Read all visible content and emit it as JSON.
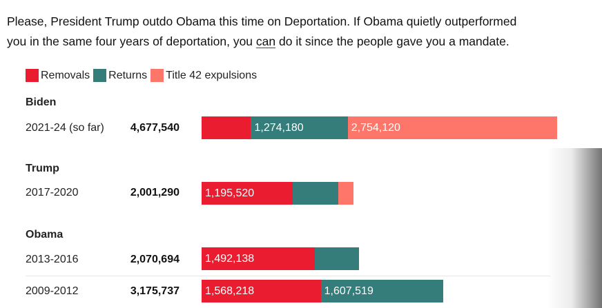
{
  "intro": {
    "line1": "Please, President Trump outdo Obama this time on Deportation.  If Obama quietly outperformed",
    "line2_before": "you in the same four years of deportation, you ",
    "line2_underlined": "can",
    "line2_after": " do it since the people gave you a mandate."
  },
  "colors": {
    "removals": "#ea1c30",
    "returns": "#357d7b",
    "title42": "#fd7669"
  },
  "chart_data": {
    "type": "bar",
    "orientation": "horizontal",
    "stacked": true,
    "legend": [
      "Removals",
      "Returns",
      "Title 42 expulsions"
    ],
    "groups": [
      {
        "name": "Biden",
        "rows": [
          {
            "period": "2021-24 (so far)",
            "total": "4,677,540",
            "total_value": 4677540,
            "segments": [
              {
                "series": "Removals",
                "value": 649240,
                "label": ""
              },
              {
                "series": "Returns",
                "value": 1274180,
                "label": "1,274,180"
              },
              {
                "series": "Title 42 expulsions",
                "value": 2754120,
                "label": "2,754,120"
              }
            ]
          }
        ]
      },
      {
        "name": "Trump",
        "rows": [
          {
            "period": "2017-2020",
            "total": "2,001,290",
            "total_value": 2001290,
            "segments": [
              {
                "series": "Removals",
                "value": 1195520,
                "label": "1,195,520"
              },
              {
                "series": "Returns",
                "value": 604000,
                "label": ""
              },
              {
                "series": "Title 42 expulsions",
                "value": 201770,
                "label": ""
              }
            ]
          }
        ]
      },
      {
        "name": "Obama",
        "rows": [
          {
            "period": "2013-2016",
            "total": "2,070,694",
            "total_value": 2070694,
            "segments": [
              {
                "series": "Removals",
                "value": 1492138,
                "label": "1,492,138"
              },
              {
                "series": "Returns",
                "value": 578556,
                "label": ""
              }
            ]
          },
          {
            "period": "2009-2012",
            "total": "3,175,737",
            "total_value": 3175737,
            "segments": [
              {
                "series": "Removals",
                "value": 1568218,
                "label": "1,568,218"
              },
              {
                "series": "Returns",
                "value": 1607519,
                "label": "1,607,519"
              }
            ]
          }
        ]
      }
    ],
    "xlim": [
      0,
      4677540
    ]
  }
}
